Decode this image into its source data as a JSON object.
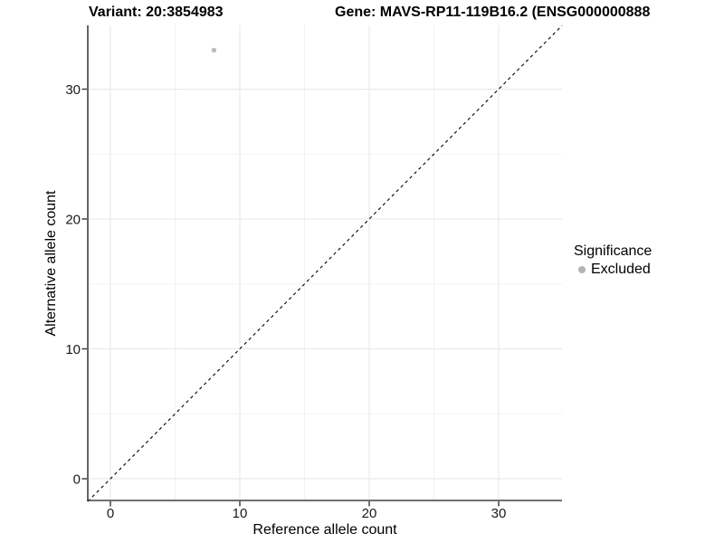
{
  "chart_data": {
    "type": "scatter",
    "title_variant": "Variant: 20:3854983",
    "title_gene": "Gene: MAVS-RP11-119B16.2 (ENSG000000888",
    "xlabel": "Reference allele count",
    "ylabel": "Alternative allele count",
    "x_ticks": [
      0,
      10,
      20,
      30
    ],
    "y_ticks": [
      0,
      10,
      20,
      30
    ],
    "x_minor_ticks": [
      5,
      15,
      25
    ],
    "y_minor_ticks": [
      5,
      15,
      25
    ],
    "xlim": [
      -1.75,
      34.9
    ],
    "ylim": [
      -1.75,
      34.9
    ],
    "grid": true,
    "points": [
      {
        "x": 8,
        "y": 33,
        "series": "Excluded"
      }
    ],
    "reference_line": {
      "kind": "identity",
      "equation": "y = x",
      "style": "dashed",
      "color": "#000000"
    },
    "legend": {
      "position": "right",
      "title": "Significance",
      "items": [
        {
          "label": "Excluded",
          "color": "#b3b3b3"
        }
      ]
    },
    "colors": {
      "point": "#bdbdbd",
      "major_grid": "#e6e6e6",
      "minor_grid": "#f2f2f2",
      "axis_line": "#404040",
      "tick_mark": "#333333",
      "tick_text": "#1a1a1a",
      "background": "#ffffff"
    }
  }
}
